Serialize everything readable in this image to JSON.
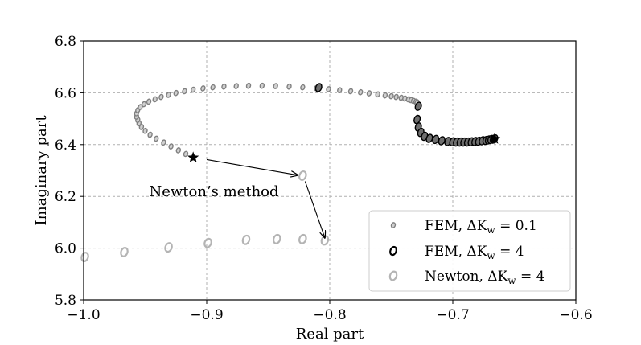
{
  "chart_data": {
    "type": "scatter",
    "title": "",
    "xlabel": "Real part",
    "ylabel": "Imaginary part",
    "xlim": [
      -1.0,
      -0.6
    ],
    "ylim": [
      5.8,
      6.8
    ],
    "xticks": [
      -1.0,
      -0.9,
      -0.8,
      -0.7,
      -0.6
    ],
    "xtick_labels": [
      "−1.0",
      "−0.9",
      "−0.8",
      "−0.7",
      "−0.6"
    ],
    "yticks": [
      5.8,
      6.0,
      6.2,
      6.4,
      6.6,
      6.8
    ],
    "ytick_labels": [
      "5.8",
      "6.0",
      "6.2",
      "6.4",
      "6.6",
      "6.8"
    ],
    "grid": true,
    "legend_position": "lower-right",
    "series": [
      {
        "name": "FEM, ΔK_w = 0.1",
        "legend_text": "FEM, ΔK",
        "legend_sub": "w",
        "legend_value": " = 0.1",
        "color": "#808080",
        "marker": "small-open-ellipse",
        "x": [
          -0.911,
          -0.917,
          -0.923,
          -0.929,
          -0.935,
          -0.941,
          -0.946,
          -0.95,
          -0.953,
          -0.955,
          -0.956,
          -0.957,
          -0.957,
          -0.956,
          -0.954,
          -0.951,
          -0.947,
          -0.942,
          -0.937,
          -0.931,
          -0.925,
          -0.918,
          -0.911,
          -0.903,
          -0.895,
          -0.886,
          -0.876,
          -0.866,
          -0.855,
          -0.844,
          -0.833,
          -0.822,
          -0.811,
          -0.801,
          -0.792,
          -0.783,
          -0.775,
          -0.768,
          -0.761,
          -0.755,
          -0.75,
          -0.746,
          -0.742,
          -0.739,
          -0.736,
          -0.734,
          -0.732,
          -0.73,
          -0.729
        ],
        "y": [
          6.35,
          6.364,
          6.378,
          6.393,
          6.408,
          6.423,
          6.438,
          6.453,
          6.468,
          6.482,
          6.495,
          6.508,
          6.521,
          6.533,
          6.545,
          6.556,
          6.566,
          6.575,
          6.584,
          6.592,
          6.599,
          6.606,
          6.612,
          6.617,
          6.621,
          6.624,
          6.626,
          6.627,
          6.627,
          6.626,
          6.624,
          6.621,
          6.618,
          6.614,
          6.61,
          6.606,
          6.602,
          6.598,
          6.594,
          6.59,
          6.587,
          6.584,
          6.581,
          6.578,
          6.575,
          6.572,
          6.569,
          6.566,
          6.563
        ]
      },
      {
        "name": "FEM, ΔK_w = 4",
        "legend_text": "FEM, ΔK",
        "legend_sub": "w",
        "legend_value": " = 4",
        "color": "#000000",
        "marker": "open-ellipse",
        "x": [
          -0.809,
          -0.728,
          -0.729,
          -0.728,
          -0.726,
          -0.723,
          -0.719,
          -0.714,
          -0.709,
          -0.704,
          -0.7,
          -0.697,
          -0.694,
          -0.691,
          -0.688,
          -0.685,
          -0.682,
          -0.679,
          -0.676,
          -0.673,
          -0.671,
          -0.669,
          -0.667,
          -0.666
        ],
        "y": [
          6.62,
          6.548,
          6.497,
          6.468,
          6.447,
          6.432,
          6.424,
          6.42,
          6.415,
          6.412,
          6.411,
          6.41,
          6.41,
          6.41,
          6.41,
          6.411,
          6.412,
          6.413,
          6.415,
          6.416,
          6.418,
          6.42,
          6.421,
          6.422
        ]
      },
      {
        "name": "Newton, ΔK_w = 4",
        "legend_text": "Newton, ΔK",
        "legend_sub": "w",
        "legend_value": " = 4",
        "color": "#b4b4b4",
        "marker": "open-ellipse",
        "x": [
          -0.999,
          -0.967,
          -0.931,
          -0.899,
          -0.868,
          -0.843,
          -0.822,
          -0.804,
          -0.822
        ],
        "y": [
          5.966,
          5.985,
          6.003,
          6.02,
          6.032,
          6.035,
          6.035,
          6.03,
          6.28
        ]
      }
    ],
    "start_points": [
      {
        "name": "start-left",
        "x": -0.911,
        "y": 6.35
      },
      {
        "name": "start-right",
        "x": -0.666,
        "y": 6.422
      }
    ],
    "annotation": {
      "text": "Newton’s method",
      "arrow1": {
        "from": [
          -0.9,
          6.342
        ],
        "to": [
          -0.826,
          6.282
        ]
      },
      "arrow2": {
        "from": [
          -0.82,
          6.258
        ],
        "to": [
          -0.804,
          6.04
        ]
      }
    }
  }
}
